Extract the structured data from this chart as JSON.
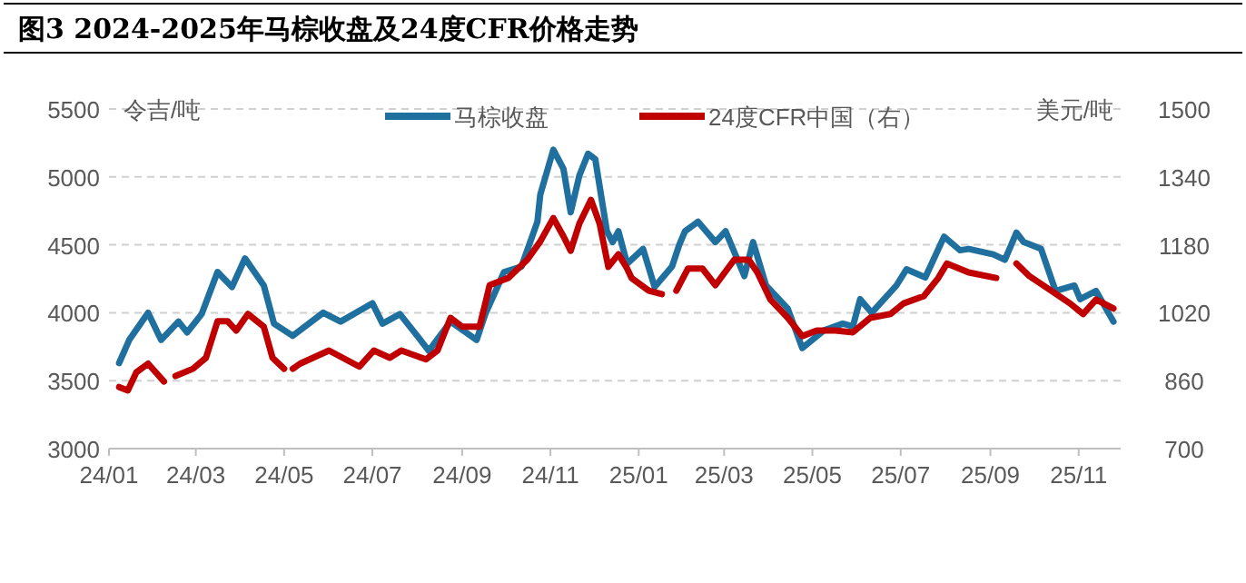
{
  "chart_data": {
    "type": "line",
    "title": "图3 2024-2025年马棕收盘及24度CFR价格走势",
    "ylabel": "令吉/吨",
    "y2label": "美元/吨",
    "xlim": [
      "2024-01-01",
      "2025-11-30"
    ],
    "xticks": [
      {
        "value": "2024-01-01",
        "label": "24/01"
      },
      {
        "value": "2024-03-01",
        "label": "24/03"
      },
      {
        "value": "2024-05-01",
        "label": "24/05"
      },
      {
        "value": "2024-07-01",
        "label": "24/07"
      },
      {
        "value": "2024-09-01",
        "label": "24/09"
      },
      {
        "value": "2024-11-01",
        "label": "24/11"
      },
      {
        "value": "2025-01-01",
        "label": "25/01"
      },
      {
        "value": "2025-03-01",
        "label": "25/03"
      },
      {
        "value": "2025-05-01",
        "label": "25/05"
      },
      {
        "value": "2025-07-01",
        "label": "25/07"
      },
      {
        "value": "2025-09-01",
        "label": "25/09"
      },
      {
        "value": "2025-11-01",
        "label": "25/11"
      }
    ],
    "ylim": [
      3000,
      5500
    ],
    "yticks": [
      3000,
      3500,
      4000,
      4500,
      5000,
      5500
    ],
    "y2lim": [
      700,
      1500
    ],
    "y2ticks": [
      700,
      860,
      1020,
      1180,
      1340,
      1500
    ],
    "grid": "y",
    "legend": "top",
    "line_style": "solid",
    "series": [
      {
        "name": "马棕收盘",
        "color": "#1f6f9f",
        "x": [
          "2024-01-08",
          "2024-01-15",
          "2024-01-28",
          "2024-02-06",
          "2024-02-18",
          "2024-02-24",
          "2024-03-05",
          "2024-03-16",
          "2024-03-26",
          "2024-04-04",
          "2024-04-17",
          "2024-04-24",
          "2024-05-07",
          "2024-05-28",
          "2024-06-09",
          "2024-07-01",
          "2024-07-08",
          "2024-07-20",
          "2024-08-01",
          "2024-08-09",
          "2024-08-24",
          "2024-09-11",
          "2024-09-17",
          "2024-09-30",
          "2024-10-12",
          "2024-10-23",
          "2024-10-25",
          "2024-11-03",
          "2024-11-10",
          "2024-11-15",
          "2024-11-21",
          "2024-11-27",
          "2024-12-02",
          "2024-12-10",
          "2024-12-14",
          "2024-12-18",
          "2024-12-24",
          "2025-01-04",
          "2025-01-12",
          "2025-01-24",
          "2025-01-29",
          "2025-02-02",
          "2025-02-11",
          "2025-02-23",
          "2025-03-02",
          "2025-03-15",
          "2025-03-21",
          "2025-03-30",
          "2025-04-14",
          "2025-04-24",
          "2025-05-09",
          "2025-05-22",
          "2025-05-29",
          "2025-06-03",
          "2025-06-11",
          "2025-06-28",
          "2025-07-05",
          "2025-07-18",
          "2025-07-31",
          "2025-08-11",
          "2025-08-17",
          "2025-09-03",
          "2025-09-11",
          "2025-09-19",
          "2025-09-24",
          "2025-10-06",
          "2025-10-16",
          "2025-10-29",
          "2025-11-02",
          "2025-11-13",
          "2025-11-25"
        ],
        "values": [
          3630,
          3800,
          4000,
          3800,
          3935,
          3855,
          3990,
          4300,
          4190,
          4400,
          4200,
          3920,
          3830,
          4000,
          3935,
          4070,
          3920,
          3990,
          3830,
          3720,
          3935,
          3800,
          3990,
          4300,
          4340,
          4670,
          4870,
          5200,
          5060,
          4740,
          5010,
          5170,
          5130,
          4600,
          4520,
          4600,
          4360,
          4470,
          4190,
          4340,
          4500,
          4600,
          4670,
          4520,
          4600,
          4270,
          4520,
          4200,
          4030,
          3740,
          3870,
          3920,
          3900,
          4100,
          4000,
          4200,
          4320,
          4260,
          4560,
          4460,
          4470,
          4430,
          4390,
          4590,
          4520,
          4470,
          4160,
          4200,
          4100,
          4160,
          3935
        ]
      },
      {
        "name": "24度CFR中国（右）",
        "color": "#c00000",
        "axis": "y2",
        "x": [
          "2024-01-08",
          "2024-01-14",
          "2024-01-20",
          "2024-01-28",
          "2024-02-08",
          "2024-02-12",
          "2024-02-16",
          "2024-02-28",
          "2024-03-08",
          "2024-03-16",
          "2024-03-23",
          "2024-03-29",
          "2024-04-06",
          "2024-04-17",
          "2024-04-23",
          "2024-05-01",
          "2024-05-04",
          "2024-05-07",
          "2024-05-12",
          "2024-06-01",
          "2024-06-22",
          "2024-07-02",
          "2024-07-13",
          "2024-07-21",
          "2024-08-07",
          "2024-08-15",
          "2024-08-24",
          "2024-09-01",
          "2024-09-13",
          "2024-09-17",
          "2024-09-20",
          "2024-10-03",
          "2024-10-16",
          "2024-10-25",
          "2024-11-03",
          "2024-11-10",
          "2024-11-15",
          "2024-11-21",
          "2024-11-29",
          "2024-12-05",
          "2024-12-11",
          "2024-12-18",
          "2024-12-24",
          "2024-12-27",
          "2025-01-08",
          "2025-01-17",
          "2025-01-22",
          "2025-01-27",
          "2025-02-04",
          "2025-02-14",
          "2025-02-23",
          "2025-03-08",
          "2025-03-18",
          "2025-03-24",
          "2025-04-02",
          "2025-04-14",
          "2025-04-24",
          "2025-05-04",
          "2025-05-17",
          "2025-05-29",
          "2025-06-10",
          "2025-06-24",
          "2025-07-03",
          "2025-07-17",
          "2025-07-27",
          "2025-08-02",
          "2025-08-17",
          "2025-09-05",
          "2025-09-12",
          "2025-09-19",
          "2025-09-28",
          "2025-10-13",
          "2025-10-26",
          "2025-11-04",
          "2025-11-13",
          "2025-11-25"
        ],
        "values": [
          845,
          837,
          880,
          900,
          858,
          null,
          871,
          888,
          914,
          1000,
          1000,
          978,
          1017,
          987,
          914,
          888,
          null,
          888,
          900,
          931,
          893,
          931,
          914,
          931,
          910,
          931,
          1008,
          987,
          987,
          1042,
          1085,
          1102,
          1145,
          1188,
          1243,
          1200,
          1166,
          1230,
          1286,
          1230,
          1128,
          1158,
          1124,
          1102,
          1072,
          1064,
          null,
          1072,
          1124,
          1124,
          1085,
          1145,
          1145,
          1115,
          1051,
          1008,
          965,
          978,
          978,
          974,
          1008,
          1017,
          1042,
          1059,
          1102,
          1136,
          1115,
          1102,
          null,
          1136,
          1106,
          1072,
          1042,
          1017,
          1051,
          1030
        ]
      }
    ]
  }
}
